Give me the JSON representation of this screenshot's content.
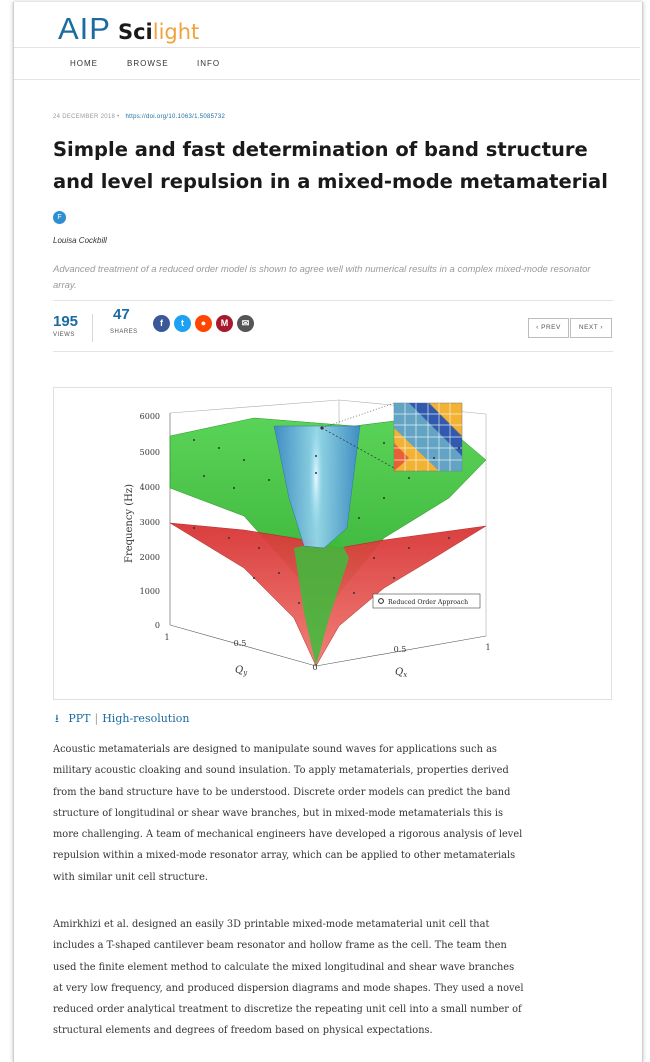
{
  "logo": {
    "aip": "AIP",
    "sci": "Sci",
    "light": "light"
  },
  "nav": {
    "items": [
      "HOME",
      "BROWSE",
      "INFO"
    ]
  },
  "article": {
    "date": "24 DECEMBER 2018 •",
    "doi": "https://doi.org/10.1063/1.5085732",
    "title_line1": "Simple and fast determination of band structure",
    "title_line2": "and level repulsion in a mixed-mode metamaterial",
    "author_badge": "F",
    "author": "Louisa Cockbill",
    "abstract": "Advanced treatment of a reduced order model is shown to agree well with numerical results in a complex mixed-mode resonator array."
  },
  "stats": {
    "views": "195",
    "views_label": "VIEWS",
    "shares": "47",
    "shares_label": "SHARES"
  },
  "share_icons": [
    {
      "name": "facebook-icon",
      "glyph": "f",
      "color": "#3b5998"
    },
    {
      "name": "twitter-icon",
      "glyph": "t",
      "color": "#1da1f2"
    },
    {
      "name": "reddit-icon",
      "glyph": "●",
      "color": "#ff4500"
    },
    {
      "name": "mendeley-icon",
      "glyph": "M",
      "color": "#a6192e"
    },
    {
      "name": "email-icon",
      "glyph": "✉",
      "color": "#555555"
    }
  ],
  "pager": {
    "prev": "‹ PREV",
    "next": "NEXT ›"
  },
  "figure": {
    "ylabel": "Frequency (Hz)",
    "yticks": [
      "6000",
      "5000",
      "4000",
      "3000",
      "2000",
      "1000",
      "0"
    ],
    "xticks_left": [
      "1",
      "0.5",
      "0"
    ],
    "xticks_right": [
      "0.5",
      "1"
    ],
    "qy_label": "Q",
    "qy_sub": "y",
    "qx_label": "Q",
    "qx_sub": "x",
    "legend": "Reduced Order Approach",
    "colors": {
      "green": "#35c435",
      "red": "#e23a3a",
      "blue": "#3a8fd8"
    }
  },
  "fig_links": {
    "ppt": "PPT",
    "hires": "High-resolution"
  },
  "paragraphs": [
    [
      "Acoustic metamaterials are designed to manipulate sound waves for applications such as",
      "military acoustic cloaking and sound insulation. To apply metamaterials, properties derived",
      "from the band structure have to be understood. Discrete order models can predict the band",
      "structure of longitudinal or shear wave branches, but in mixed-mode metamaterials this is",
      "more challenging. A team of mechanical engineers have developed a rigorous analysis of level",
      "repulsion within a mixed-mode resonator array, which can be applied to other metamaterials",
      "with similar unit cell structure."
    ],
    [
      "Amirkhizi et al. designed an easily 3D printable mixed-mode metamaterial unit cell that",
      "includes a T-shaped cantilever beam resonator and hollow frame as the cell. The team then",
      "used the finite element method to calculate the mixed longitudinal and shear wave branches",
      "at very low frequency, and produced dispersion diagrams and mode shapes. They used a novel",
      "reduced order analytical treatment to discretize the repeating unit cell into a small number of",
      "structural elements and degrees of freedom based on physical expectations."
    ]
  ]
}
